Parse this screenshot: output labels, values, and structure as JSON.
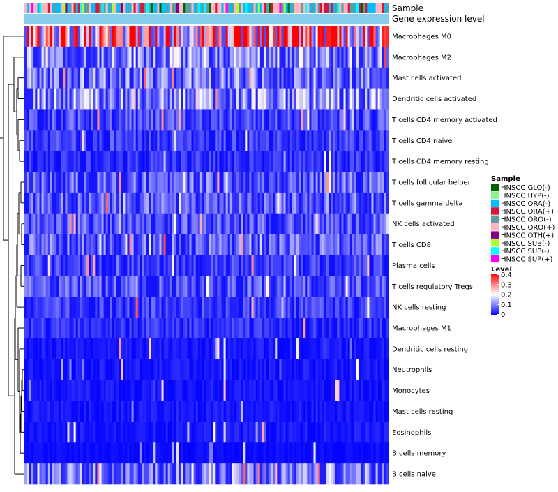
{
  "chart_data": {
    "type": "heatmap",
    "annotation_labels": {
      "sample": "Sample",
      "gene_expression": "Gene expression level"
    },
    "rows": [
      "Macrophages M0",
      "Macrophages M2",
      "Mast cells activated",
      "Dendritic cells activated",
      "T cells CD4 memory activated",
      "T cells CD4 naive",
      "T cells CD4 memory resting",
      "T cells follicular helper",
      "T cells gamma delta",
      "NK cells activated",
      "T cells CD8",
      "Plasma cells",
      "T cells regulatory  Tregs",
      "NK cells resting",
      "Macrophages M1",
      "Dendritic cells resting",
      "Neutrophils",
      "Monocytes",
      "Mast cells resting",
      "Eosinophils",
      "B cells memory",
      "B cells naive"
    ],
    "row_mean_levels": [
      0.3,
      0.12,
      0.1,
      0.12,
      0.06,
      0.05,
      0.04,
      0.08,
      0.08,
      0.07,
      0.08,
      0.05,
      0.07,
      0.05,
      0.04,
      0.02,
      0.02,
      0.02,
      0.02,
      0.02,
      0.01,
      0.11
    ],
    "num_samples": 170,
    "sample_legend": {
      "title": "Sample",
      "entries": [
        {
          "name": "HNSCC GLO(-)",
          "color": "#006400"
        },
        {
          "name": "HNSCC HYP(-)",
          "color": "#90EE90"
        },
        {
          "name": "HNSCC ORA(-)",
          "color": "#00BFFF"
        },
        {
          "name": "HNSCC ORA(+)",
          "color": "#DC143C"
        },
        {
          "name": "HNSCC ORO(-)",
          "color": "#5F9EA0"
        },
        {
          "name": "HNSCC ORO(+)",
          "color": "#FFB6C1"
        },
        {
          "name": "HNSCC OTH(+)",
          "color": "#800080"
        },
        {
          "name": "HNSCC SUB(-)",
          "color": "#ADFF2F"
        },
        {
          "name": "HNSCC SUP(-)",
          "color": "#00FFFF"
        },
        {
          "name": "HNSCC SUP(+)",
          "color": "#FF00FF"
        }
      ]
    },
    "level_legend": {
      "title": "Level",
      "ticks": [
        "0.4",
        "0.3",
        "0.2",
        "0.1",
        "0"
      ],
      "range": [
        0,
        0.4
      ],
      "colors": {
        "low": "#0000FF",
        "mid": "#FFFFFF",
        "high": "#FF0000"
      }
    },
    "gene_expression_color": "#87CEEB"
  }
}
